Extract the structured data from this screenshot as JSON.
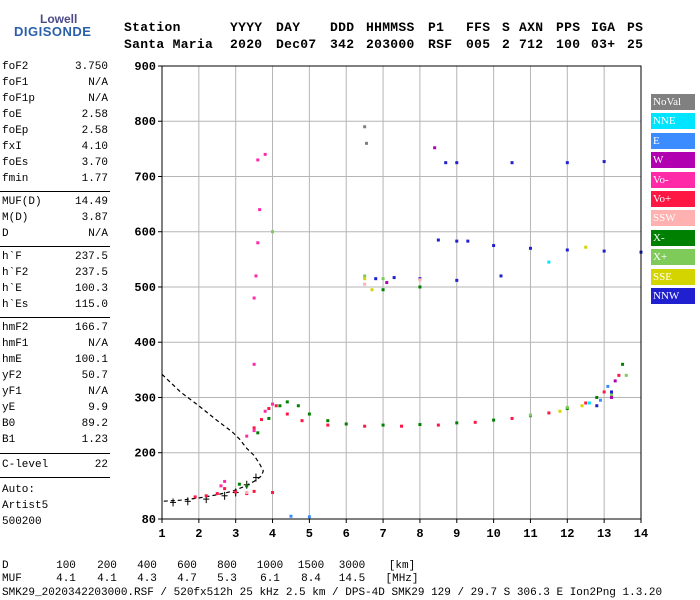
{
  "logo": {
    "top": "Lowell",
    "bottom": "DIGISONDE"
  },
  "header": {
    "labels": [
      "Station",
      "YYYY",
      "DAY",
      "DDD",
      "HHMMSS",
      "P1",
      "FFS",
      "S",
      "AXN",
      "PPS",
      "IGA",
      "PS"
    ],
    "values": [
      "Santa Maria",
      "2020",
      "Dec07",
      "342",
      "203000",
      "RSF",
      "005",
      "2",
      "712",
      "100",
      "03+",
      "25"
    ]
  },
  "params": {
    "group1": [
      {
        "label": "foF2",
        "value": "3.750"
      },
      {
        "label": "foF1",
        "value": "N/A"
      },
      {
        "label": "foF1p",
        "value": "N/A"
      },
      {
        "label": "foE",
        "value": "2.58"
      },
      {
        "label": "foEp",
        "value": "2.58"
      },
      {
        "label": "fxI",
        "value": "4.10"
      },
      {
        "label": "foEs",
        "value": "3.70"
      },
      {
        "label": "fmin",
        "value": "1.77"
      }
    ],
    "group2": [
      {
        "label": "MUF(D)",
        "value": "14.49"
      },
      {
        "label": "M(D)",
        "value": "3.87"
      },
      {
        "label": "D",
        "value": "N/A"
      }
    ],
    "group3": [
      {
        "label": "h`F",
        "value": "237.5"
      },
      {
        "label": "h`F2",
        "value": "237.5"
      },
      {
        "label": "h`E",
        "value": "100.3"
      },
      {
        "label": "h`Es",
        "value": "115.0"
      }
    ],
    "group4": [
      {
        "label": "hmF2",
        "value": "166.7"
      },
      {
        "label": "hmF1",
        "value": "N/A"
      },
      {
        "label": "hmE",
        "value": "100.1"
      },
      {
        "label": "yF2",
        "value": "50.7"
      },
      {
        "label": "yF1",
        "value": "N/A"
      },
      {
        "label": "yE",
        "value": "9.9"
      },
      {
        "label": "B0",
        "value": "89.2"
      },
      {
        "label": "B1",
        "value": "1.23"
      }
    ],
    "clevel": {
      "label": "C-level",
      "value": "22"
    },
    "auto": [
      "Auto:",
      "Artist5",
      "500200"
    ]
  },
  "legend": [
    {
      "label": "NoVal",
      "color": "#808080"
    },
    {
      "label": "NNE",
      "color": "#00e5ff"
    },
    {
      "label": "E",
      "color": "#3b8cff"
    },
    {
      "label": "W",
      "color": "#b000b0"
    },
    {
      "label": "Vo-",
      "color": "#ff2aa8"
    },
    {
      "label": "Vo+",
      "color": "#ff1744"
    },
    {
      "label": "SSW",
      "color": "#ffb0b0"
    },
    {
      "label": "X-",
      "color": "#008000"
    },
    {
      "label": "X+",
      "color": "#7ecb5a"
    },
    {
      "label": "SSE",
      "color": "#d4d400"
    },
    {
      "label": "NNW",
      "color": "#2020d0"
    }
  ],
  "chart_data": {
    "type": "scatter",
    "xlim": [
      1,
      14
    ],
    "ylim": [
      80,
      900
    ],
    "x_ticks": [
      1,
      2,
      3,
      4,
      5,
      6,
      7,
      8,
      9,
      10,
      11,
      12,
      13,
      14
    ],
    "y_ticks": [
      80,
      200,
      300,
      400,
      500,
      600,
      700,
      800,
      900
    ],
    "grid": true,
    "series": [
      {
        "name": "Vo+",
        "color": "#ff1744",
        "points": [
          [
            1.9,
            120
          ],
          [
            2.2,
            122
          ],
          [
            2.5,
            126
          ],
          [
            2.7,
            135
          ],
          [
            3.0,
            129
          ],
          [
            3.3,
            126
          ],
          [
            3.5,
            245
          ],
          [
            3.7,
            260
          ],
          [
            3.9,
            280
          ],
          [
            4.1,
            285
          ],
          [
            4.4,
            270
          ],
          [
            4.8,
            258
          ],
          [
            5.5,
            250
          ],
          [
            6.5,
            248
          ],
          [
            7.5,
            248
          ],
          [
            8.5,
            250
          ],
          [
            9.5,
            255
          ],
          [
            10.5,
            262
          ],
          [
            11.5,
            272
          ],
          [
            12.5,
            290
          ],
          [
            13.0,
            310
          ],
          [
            13.4,
            340
          ],
          [
            3.5,
            130
          ],
          [
            4.0,
            128
          ]
        ]
      },
      {
        "name": "Vo-",
        "color": "#ff2aa8",
        "points": [
          [
            2.6,
            140
          ],
          [
            2.7,
            148
          ],
          [
            3.3,
            230
          ],
          [
            3.5,
            240
          ],
          [
            3.8,
            275
          ],
          [
            4.0,
            288
          ],
          [
            3.5,
            480
          ],
          [
            3.55,
            520
          ],
          [
            3.6,
            580
          ],
          [
            3.65,
            640
          ],
          [
            3.6,
            730
          ],
          [
            3.8,
            740
          ],
          [
            3.5,
            360
          ]
        ]
      },
      {
        "name": "X-",
        "color": "#008000",
        "points": [
          [
            3.1,
            143
          ],
          [
            3.3,
            140
          ],
          [
            3.6,
            236
          ],
          [
            3.9,
            262
          ],
          [
            4.2,
            285
          ],
          [
            4.4,
            292
          ],
          [
            4.7,
            285
          ],
          [
            5.0,
            270
          ],
          [
            5.5,
            258
          ],
          [
            6.0,
            252
          ],
          [
            7.0,
            250
          ],
          [
            8.0,
            251
          ],
          [
            9.0,
            254
          ],
          [
            10.0,
            259
          ],
          [
            11.0,
            267
          ],
          [
            12.0,
            280
          ],
          [
            12.8,
            300
          ],
          [
            13.5,
            360
          ],
          [
            7.0,
            495
          ],
          [
            8.0,
            500
          ]
        ]
      },
      {
        "name": "X+",
        "color": "#7ecb5a",
        "points": [
          [
            4.0,
            600
          ],
          [
            6.5,
            520
          ],
          [
            7.0,
            515
          ],
          [
            11.0,
            268
          ],
          [
            12.0,
            282
          ],
          [
            13.2,
            305
          ],
          [
            13.6,
            340
          ]
        ]
      },
      {
        "name": "NNW",
        "color": "#2020d0",
        "points": [
          [
            8.5,
            585
          ],
          [
            9.0,
            583
          ],
          [
            9.3,
            583
          ],
          [
            10.0,
            575
          ],
          [
            11.0,
            570
          ],
          [
            12.0,
            567
          ],
          [
            13.0,
            565
          ],
          [
            14.0,
            563
          ],
          [
            8.7,
            725
          ],
          [
            9.0,
            725
          ],
          [
            10.5,
            725
          ],
          [
            12.0,
            725
          ],
          [
            13.0,
            727
          ],
          [
            6.8,
            515
          ],
          [
            7.3,
            517
          ],
          [
            8.0,
            515
          ],
          [
            9.0,
            512
          ],
          [
            10.2,
            520
          ],
          [
            12.8,
            285
          ],
          [
            13.2,
            310
          ]
        ]
      },
      {
        "name": "SSE",
        "color": "#d4d400",
        "points": [
          [
            11.8,
            275
          ],
          [
            12.4,
            285
          ],
          [
            12.5,
            572
          ],
          [
            6.5,
            515
          ],
          [
            6.7,
            495
          ]
        ]
      },
      {
        "name": "SSW",
        "color": "#ffb0b0",
        "points": [
          [
            6.5,
            505
          ],
          [
            8.0,
            513
          ],
          [
            3.3,
            128
          ]
        ]
      },
      {
        "name": "W",
        "color": "#b000b0",
        "points": [
          [
            8.4,
            752
          ],
          [
            13.2,
            300
          ],
          [
            13.3,
            330
          ],
          [
            7.1,
            508
          ]
        ]
      },
      {
        "name": "E",
        "color": "#3b8cff",
        "points": [
          [
            12.9,
            295
          ],
          [
            13.1,
            320
          ],
          [
            4.5,
            85
          ],
          [
            5.0,
            84
          ]
        ]
      },
      {
        "name": "NNE",
        "color": "#00e5ff",
        "points": [
          [
            12.6,
            290
          ],
          [
            11.5,
            545
          ]
        ]
      },
      {
        "name": "NoVal",
        "color": "#808080",
        "points": [
          [
            6.5,
            790
          ],
          [
            6.55,
            760
          ]
        ]
      }
    ],
    "profile": {
      "color": "#000000",
      "points": [
        [
          1.0,
          342
        ],
        [
          1.5,
          310
        ],
        [
          2.0,
          285
        ],
        [
          2.5,
          258
        ],
        [
          2.9,
          238
        ],
        [
          3.1,
          225
        ],
        [
          3.3,
          208
        ],
        [
          3.5,
          195
        ],
        [
          3.65,
          180
        ],
        [
          3.75,
          167
        ],
        [
          3.7,
          158
        ],
        [
          3.5,
          148
        ],
        [
          3.2,
          138
        ],
        [
          2.9,
          130
        ],
        [
          2.5,
          124
        ],
        [
          2.0,
          118
        ],
        [
          1.5,
          114
        ],
        [
          1.0,
          112
        ]
      ]
    },
    "profile_ticks": [
      [
        1.3,
        110
      ],
      [
        1.7,
        112
      ],
      [
        2.2,
        116
      ],
      [
        2.7,
        122
      ],
      [
        3.0,
        128
      ],
      [
        3.3,
        142
      ],
      [
        3.55,
        155
      ]
    ]
  },
  "footer": {
    "d_label": "D",
    "d_values": [
      "100",
      "200",
      "400",
      "600",
      "800",
      "1000",
      "1500",
      "3000",
      "[km]"
    ],
    "muf_label": "MUF",
    "muf_values": [
      "4.1",
      "4.1",
      "4.3",
      "4.7",
      "5.3",
      "6.1",
      "8.4",
      "14.5",
      "[MHz]"
    ],
    "info": "SMK29_2020342203000.RSF / 520fx512h 25 kHz 2.5 km / DPS-4D SMK29 129 / 29.7 S 306.3 E Ion2Png 1.3.20"
  }
}
